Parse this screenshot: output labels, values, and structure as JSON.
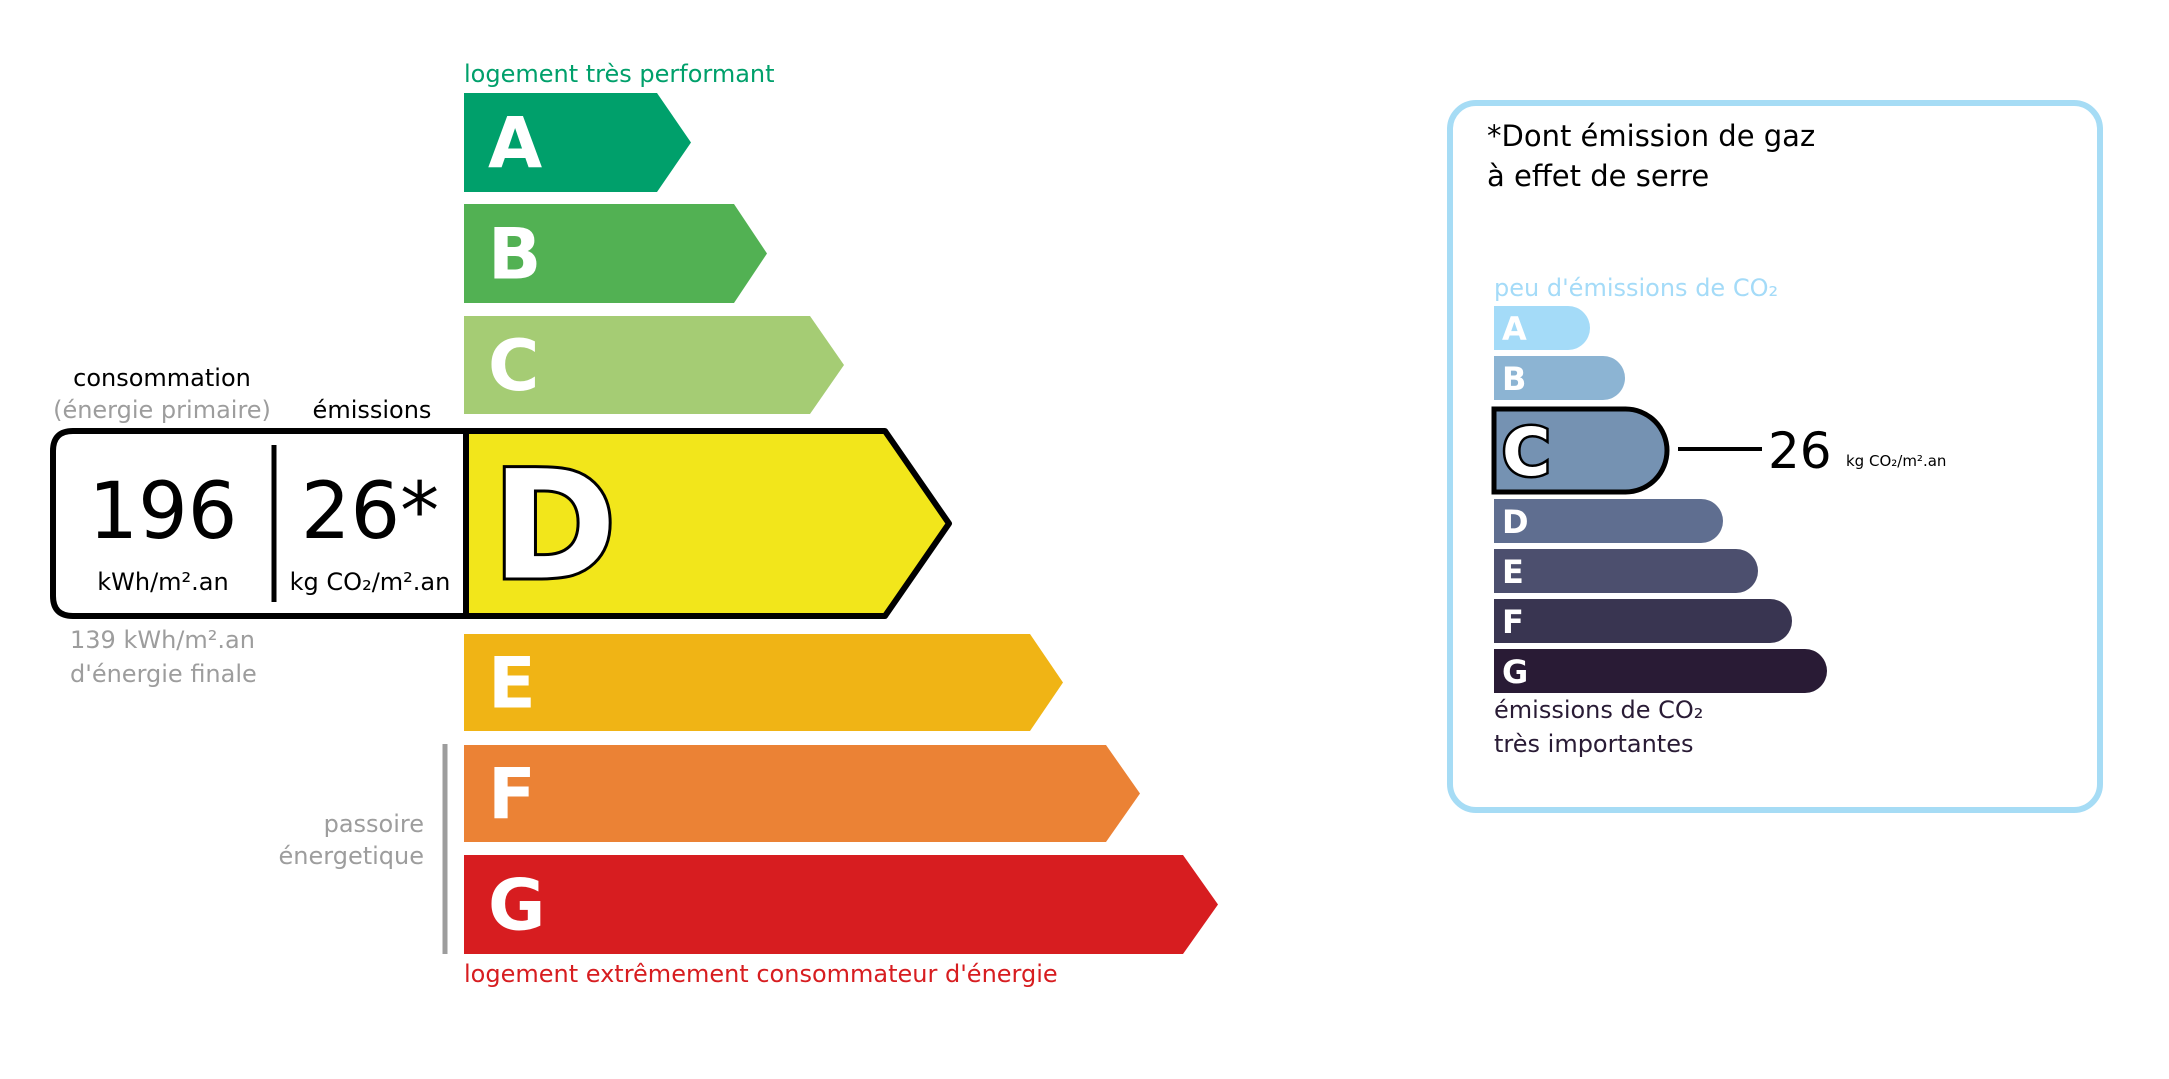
{
  "energy": {
    "top_label": "logement très performant",
    "bottom_label": "logement extrêmement consommateur d'énergie",
    "passoire_line1": "passoire",
    "passoire_line2": "énergetique",
    "classes": [
      {
        "letter": "A",
        "color": "#00a06b"
      },
      {
        "letter": "B",
        "color": "#52b153"
      },
      {
        "letter": "C",
        "color": "#a5cc74"
      },
      {
        "letter": "D",
        "color": "#f2e61b"
      },
      {
        "letter": "E",
        "color": "#f0b415"
      },
      {
        "letter": "F",
        "color": "#eb8235"
      },
      {
        "letter": "G",
        "color": "#d71d20"
      }
    ],
    "current_class": "D",
    "top_label_color": "#00a06b",
    "bottom_label_color": "#d71d20"
  },
  "reading": {
    "consumption_header": "consommation",
    "consumption_sub": "(énergie primaire)",
    "emissions_header": "émissions",
    "consumption_value": "196",
    "consumption_unit": "kWh/m².an",
    "emissions_value": "26*",
    "emissions_unit": "kg CO₂/m².an",
    "final_energy_line1": "139 kWh/m².an",
    "final_energy_line2": "d'énergie finale"
  },
  "ges": {
    "title_line1": "*Dont émission de gaz",
    "title_line2": "à effet de serre",
    "top_label": "peu d'émissions de CO₂",
    "bottom_label_line1": "émissions de CO₂",
    "bottom_label_line2": "très importantes",
    "classes": [
      {
        "letter": "A",
        "color": "#a4dbf8"
      },
      {
        "letter": "B",
        "color": "#8cb4d3"
      },
      {
        "letter": "C",
        "color": "#7592b2"
      },
      {
        "letter": "D",
        "color": "#5f6e90"
      },
      {
        "letter": "E",
        "color": "#4c4f6e"
      },
      {
        "letter": "F",
        "color": "#393551"
      },
      {
        "letter": "G",
        "color": "#291b35"
      }
    ],
    "current_class": "C",
    "value": "26",
    "unit": "kg CO₂/m².an",
    "border_color": "#a6dcf5"
  }
}
